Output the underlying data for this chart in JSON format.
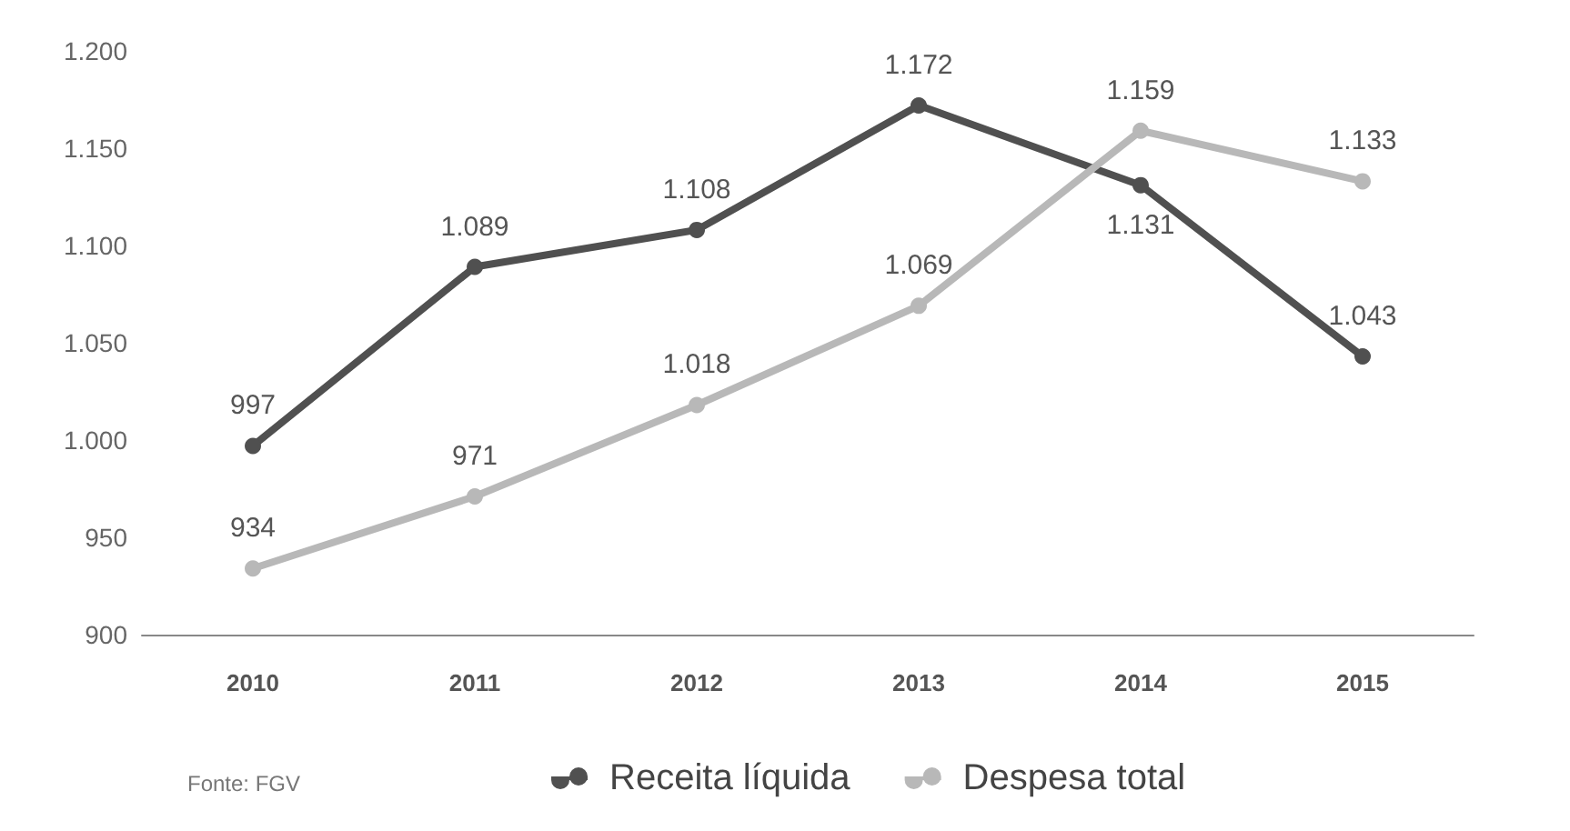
{
  "chart_data": {
    "type": "line",
    "categories": [
      "2010",
      "2011",
      "2012",
      "2013",
      "2014",
      "2015"
    ],
    "series": [
      {
        "name": "Receita líquida",
        "color": "#505050",
        "values": [
          997,
          1089,
          1108,
          1172,
          1131,
          1043
        ],
        "value_labels": [
          "997",
          "1.089",
          "1.108",
          "1.172",
          "1.131",
          "1.043"
        ]
      },
      {
        "name": "Despesa total",
        "color": "#b8b8b8",
        "values": [
          934,
          971,
          1018,
          1069,
          1159,
          1133
        ],
        "value_labels": [
          "934",
          "971",
          "1.018",
          "1.069",
          "1.159",
          "1.133"
        ]
      }
    ],
    "ylim": [
      900,
      1200
    ],
    "yticks": [
      {
        "value": 900,
        "label": "900"
      },
      {
        "value": 950,
        "label": "950"
      },
      {
        "value": 1000,
        "label": "1.000"
      },
      {
        "value": 1050,
        "label": "1.050"
      },
      {
        "value": 1100,
        "label": "1.100"
      },
      {
        "value": 1150,
        "label": "1.150"
      },
      {
        "value": 1200,
        "label": "1.200"
      }
    ],
    "grid": false,
    "legend": "bottom",
    "marker": "circle",
    "line_style": "solid",
    "annotations": [
      "Fonte: FGV"
    ]
  }
}
